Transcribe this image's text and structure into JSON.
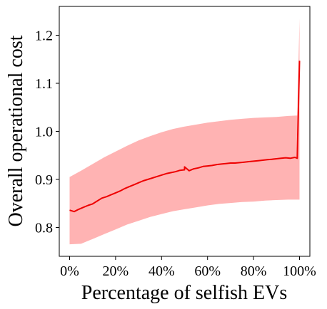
{
  "chart_data": {
    "type": "line",
    "title": "",
    "xlabel": "Percentage of selfish EVs",
    "ylabel": "Overall operational cost",
    "xlim": [
      -0.045,
      1.045
    ],
    "ylim": [
      0.74,
      1.26
    ],
    "x_ticks": [
      {
        "value": 0.0,
        "label": "0%"
      },
      {
        "value": 0.2,
        "label": "20%"
      },
      {
        "value": 0.4,
        "label": "40%"
      },
      {
        "value": 0.6,
        "label": "60%"
      },
      {
        "value": 0.8,
        "label": "80%"
      },
      {
        "value": 1.0,
        "label": "100%"
      }
    ],
    "y_ticks": [
      {
        "value": 0.8,
        "label": "0.8"
      },
      {
        "value": 0.9,
        "label": "0.9"
      },
      {
        "value": 1.0,
        "label": "1.0"
      },
      {
        "value": 1.1,
        "label": "1.1"
      },
      {
        "value": 1.2,
        "label": "1.2"
      }
    ],
    "grid": false,
    "legend": "none",
    "series": [
      {
        "kind": "mean-line",
        "color": "#ee0000",
        "x": [
          0.0,
          0.02,
          0.04,
          0.06,
          0.08,
          0.1,
          0.12,
          0.14,
          0.16,
          0.18,
          0.2,
          0.22,
          0.24,
          0.26,
          0.28,
          0.3,
          0.32,
          0.34,
          0.36,
          0.38,
          0.4,
          0.42,
          0.44,
          0.46,
          0.48,
          0.5,
          0.5,
          0.52,
          0.54,
          0.56,
          0.58,
          0.6,
          0.62,
          0.64,
          0.66,
          0.68,
          0.7,
          0.72,
          0.74,
          0.76,
          0.78,
          0.8,
          0.82,
          0.84,
          0.86,
          0.88,
          0.9,
          0.92,
          0.94,
          0.96,
          0.98,
          0.99,
          1.0
        ],
        "y": [
          0.836,
          0.833,
          0.838,
          0.842,
          0.846,
          0.849,
          0.855,
          0.861,
          0.864,
          0.868,
          0.872,
          0.876,
          0.881,
          0.885,
          0.889,
          0.893,
          0.897,
          0.9,
          0.903,
          0.906,
          0.909,
          0.912,
          0.914,
          0.916,
          0.919,
          0.92,
          0.926,
          0.918,
          0.922,
          0.924,
          0.927,
          0.928,
          0.929,
          0.931,
          0.932,
          0.933,
          0.934,
          0.934,
          0.935,
          0.936,
          0.937,
          0.938,
          0.939,
          0.94,
          0.941,
          0.942,
          0.943,
          0.944,
          0.945,
          0.944,
          0.946,
          0.944,
          1.147
        ]
      },
      {
        "kind": "band",
        "color": "#ffb3b3",
        "x": [
          0.0,
          0.05,
          0.1,
          0.15,
          0.2,
          0.25,
          0.3,
          0.35,
          0.4,
          0.45,
          0.5,
          0.55,
          0.6,
          0.65,
          0.7,
          0.75,
          0.8,
          0.85,
          0.9,
          0.95,
          0.99,
          1.0
        ],
        "upper": [
          0.905,
          0.918,
          0.932,
          0.946,
          0.958,
          0.97,
          0.981,
          0.99,
          0.998,
          1.005,
          1.01,
          1.014,
          1.018,
          1.021,
          1.024,
          1.026,
          1.028,
          1.029,
          1.03,
          1.032,
          1.033,
          1.235
        ],
        "lower": [
          0.765,
          0.766,
          0.776,
          0.786,
          0.796,
          0.806,
          0.814,
          0.822,
          0.828,
          0.834,
          0.838,
          0.842,
          0.846,
          0.849,
          0.851,
          0.853,
          0.854,
          0.856,
          0.857,
          0.858,
          0.858,
          0.858
        ]
      }
    ]
  }
}
